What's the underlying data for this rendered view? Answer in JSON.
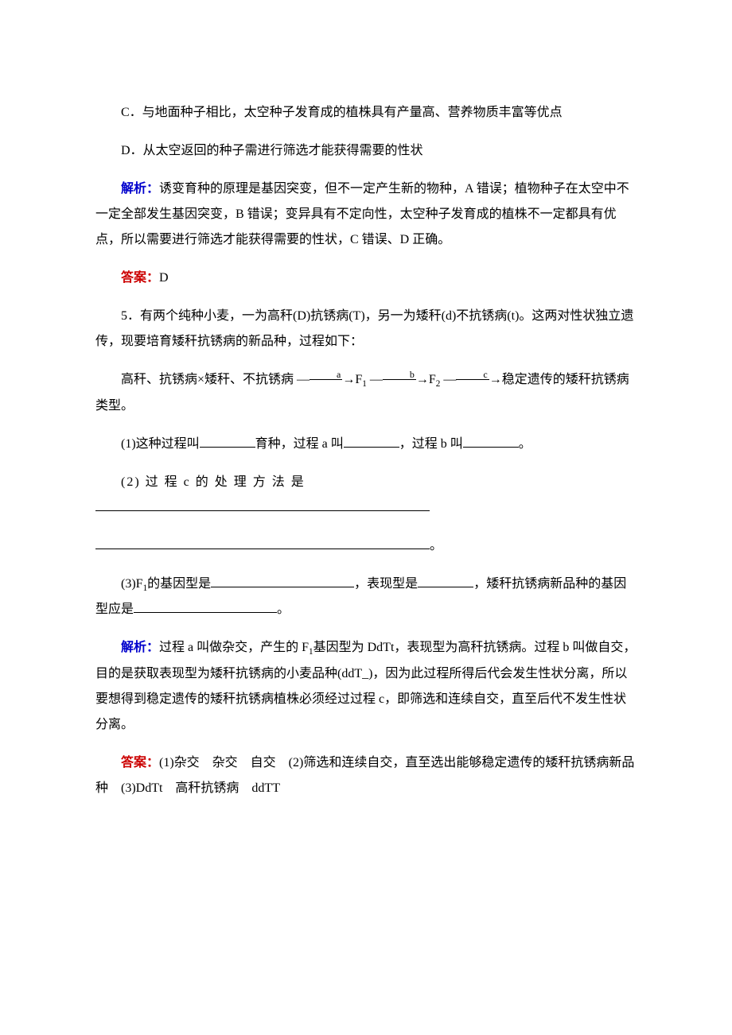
{
  "colors": {
    "body_text": "#000000",
    "blue_label": "#0000cc",
    "red_label": "#cc0000",
    "background": "#ffffff",
    "underline": "#000000"
  },
  "font": {
    "family": "SimSun",
    "size_pt": 12,
    "line_height": 2.0
  },
  "lines": {
    "opt_c": "C．与地面种子相比，太空种子发育成的植株具有产量高、营养物质丰富等优点",
    "opt_d": "D．从太空返回的种子需进行筛选才能获得需要的性状",
    "jiexi_label": "解析：",
    "jiexi_1a": "诱变育种的原理是基因突变，但不一定产生新的物种，A 错误；植物种子在太空中不一定全部发生基因突变，B 错误；变异具有不定向性，太空种子发育成的植株不一定都具有优点，所以需要进行筛选才能获得需要的性状，C 错误、D 正确。",
    "daan_label": "答案：",
    "daan_1": "D",
    "q5_a": "5．有两个纯种小麦，一为高秆(D)抗锈病(T)，另一为矮秆(d)不抗锈病(t)。这两对性状独立遗传，现要培育矮秆抗锈病的新品种，过程如下：",
    "q5_flow_a": "高秆、抗锈病×矮秆、不抗锈病 ―",
    "q5_flow_f1": "→F",
    "q5_flow_arrow": " ―",
    "q5_flow_f2": "→F",
    "q5_flow_end": "→稳定遗传的矮秆抗锈病类型。",
    "flow_a": "a",
    "flow_b": "b",
    "flow_c": "c",
    "sub1": "1",
    "sub2": "2",
    "q5_1a": "(1)这种过程叫",
    "q5_1b": "育种，过程 a 叫",
    "q5_1c": "，过程 b 叫",
    "q5_1d": "。",
    "q5_2a": "(2) 过 程 c 的 处 理 方 法 是 ",
    "q5_2b": "。",
    "q5_3a": "(3)F",
    "q5_3b": "的基因型是",
    "q5_3c": "，表现型是",
    "q5_3d": "，矮秆抗锈病新品种的基因型应是",
    "q5_3e": "。",
    "jiexi_2a": "过程 a 叫做杂交，产生的 F",
    "jiexi_2b": "基因型为 DdTt，表现型为高秆抗锈病。过程 b 叫做自交，目的是获取表现型为矮秆抗锈病的小麦品种(ddT_)，因为此过程所得后代会发生性状分离，所以要想得到稳定遗传的矮秆抗锈病植株必须经过过程 c，即筛选和连续自交，直至后代不发生性状分离。",
    "daan_2": "(1)杂交　杂交　自交　(2)筛选和连续自交，直至选出能够稳定遗传的矮秆抗锈病新品种　(3)DdTt　高秆抗锈病　ddTT"
  }
}
